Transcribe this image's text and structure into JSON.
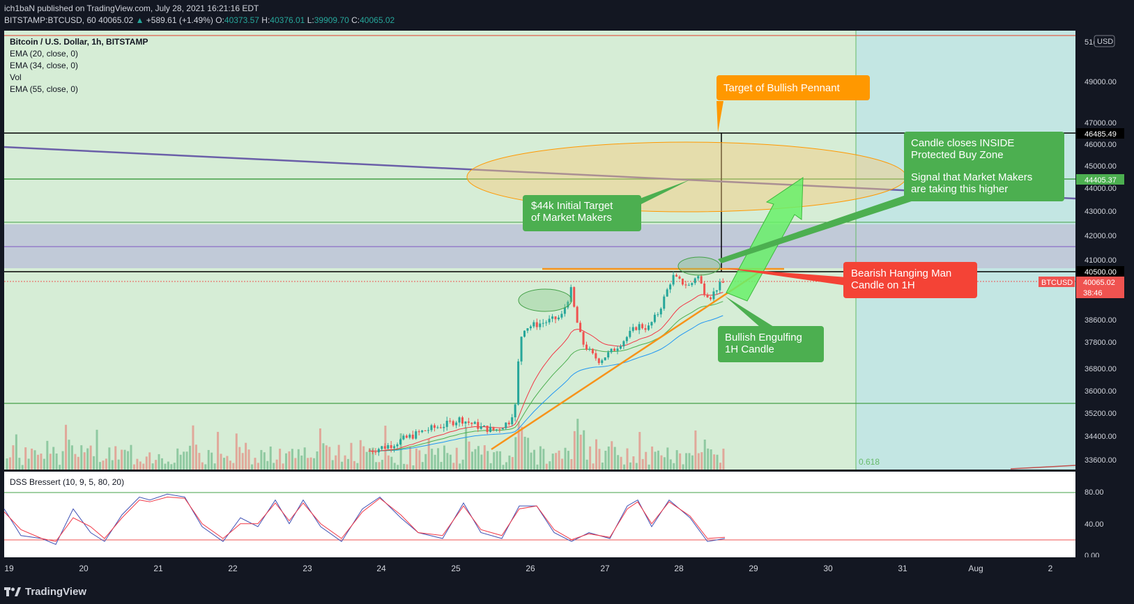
{
  "header": {
    "publish_line": "ich1baN published on TradingView.com, July 28, 2021 16:21:16 EDT",
    "symbol": "BITSTAMP:BTCUSD, 60",
    "last": "40065.02",
    "change": "+589.61 (+1.49%)",
    "o_label": "O:",
    "o": "40373.57",
    "h_label": "H:",
    "h": "40376.01",
    "l_label": "L:",
    "l": "39909.70",
    "c_label": "C:",
    "c": "40065.02"
  },
  "legend": {
    "title": "Bitcoin / U.S. Dollar, 1h, BITSTAMP",
    "lines": [
      "EMA (20, close, 0)",
      "EMA (34, close, 0)",
      "Vol",
      "EMA (55, close, 0)"
    ]
  },
  "oscillator": {
    "label": "DSS Bressert (10, 9, 5, 80, 20)"
  },
  "price_axis": {
    "currency": "USD",
    "top_partial": "51(",
    "ticks": [
      "49000.00",
      "47000.00",
      "46000.00",
      "45000.00",
      "44000.00",
      "43000.00",
      "42000.00",
      "41000.00",
      "38600.00",
      "37800.00",
      "36800.00",
      "36000.00",
      "35200.00",
      "34400.00",
      "33600.00"
    ],
    "badges": [
      "46485.49",
      "44405.37",
      "40500.00"
    ],
    "last_price": "40065.02",
    "countdown": "38:46",
    "symbol_tag": "BTCUSD"
  },
  "osc_axis": {
    "ticks": [
      "80.00",
      "40.00",
      "0.00"
    ]
  },
  "time_axis": {
    "ticks": [
      "19",
      "20",
      "21",
      "22",
      "23",
      "24",
      "25",
      "26",
      "27",
      "28",
      "29",
      "30",
      "31",
      "Aug",
      "2"
    ]
  },
  "fib_label": "0.618",
  "annotations": {
    "pennant_target": "Target of Bullish Pennant",
    "initial_target_line1": "$44k Initial Target",
    "initial_target_line2": "of Market Makers",
    "candle_closes_line1": "Candle closes INSIDE",
    "candle_closes_line2": "Protected Buy Zone",
    "signal_line1": "Signal that Market Makers",
    "signal_line2": "are taking this higher",
    "hanging_man_line1": "Bearish Hanging Man",
    "hanging_man_line2": "Candle on 1H",
    "engulfing_line1": "Bullish Engulfing",
    "engulfing_line2": "1H Candle"
  },
  "footer": {
    "brand": "TradingView"
  },
  "colors": {
    "background": "#131722",
    "green_zone": "#d6edd6",
    "teal_zone": "#c3e6e3",
    "blue_zone": "#c0c8d8",
    "bull": "#26a69a",
    "bear": "#ef5350",
    "ema20": "#f23645",
    "ema34": "#4caf50",
    "ema55": "#2196f3",
    "orange": "#f7931a",
    "purple_line": "#6a5fa8",
    "annotation_green": "#4caf50",
    "annotation_red": "#f44336",
    "annotation_orange": "#ff9800"
  },
  "chart_data": {
    "type": "candlestick",
    "title": "Bitcoin / U.S. Dollar, 1h, BITSTAMP",
    "x_axis": [
      "19",
      "20",
      "21",
      "22",
      "23",
      "24",
      "25",
      "26",
      "27",
      "28",
      "29",
      "30",
      "31",
      "Aug",
      "2"
    ],
    "price_range": [
      33400,
      51000
    ],
    "daily_summary": [
      {
        "day": "24",
        "close": 34300
      },
      {
        "day": "25",
        "close": 35100
      },
      {
        "day": "26",
        "close": 38500
      },
      {
        "day": "27",
        "close": 37500
      },
      {
        "day": "28",
        "close": 40065
      }
    ],
    "horizontal_levels": [
      46485.49,
      44405.37,
      40500.0
    ],
    "last_price": 40065.02,
    "fib_level": "0.618",
    "oscillator": {
      "name": "DSS Bressert (10, 9, 5, 80, 20)",
      "levels": [
        80,
        20
      ],
      "range": [
        0,
        100
      ]
    }
  }
}
